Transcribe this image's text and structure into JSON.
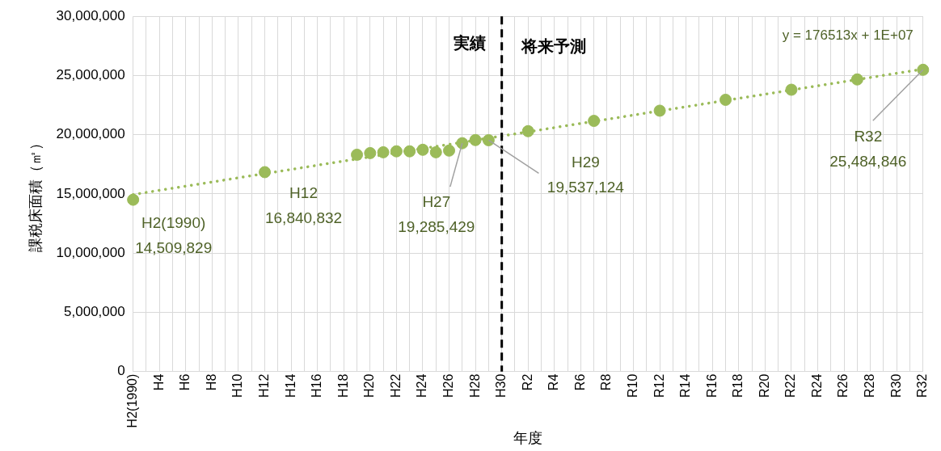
{
  "chart_data": {
    "type": "scatter",
    "ylabel": "課税床面積（㎡）",
    "xlabel": "年度",
    "categories": [
      "H2(1990)",
      null,
      "H4",
      null,
      "H6",
      null,
      "H8",
      null,
      "H10",
      null,
      "H12",
      null,
      "H14",
      null,
      "H16",
      null,
      "H18",
      null,
      "H20",
      null,
      "H22",
      null,
      "H24",
      null,
      "H26",
      null,
      "H28",
      null,
      "H30",
      null,
      "R2",
      null,
      "R4",
      null,
      "R6",
      null,
      "R8",
      null,
      "R10",
      null,
      "R12",
      null,
      "R14",
      null,
      "R16",
      null,
      "R18",
      null,
      "R20",
      null,
      "R22",
      null,
      "R24",
      null,
      "R26",
      null,
      "R28",
      null,
      "R30",
      null,
      "R32"
    ],
    "series": [
      {
        "type": "scatter",
        "color": "#9bbb59",
        "marker": "circle",
        "values": [
          14509829,
          null,
          null,
          null,
          null,
          null,
          null,
          null,
          null,
          null,
          16840832,
          null,
          null,
          null,
          null,
          null,
          null,
          18310000,
          18450000,
          18520000,
          18600000,
          18600000,
          18730000,
          18520000,
          18660000,
          19285429,
          19550000,
          19537124,
          null,
          null,
          20300000,
          null,
          null,
          null,
          null,
          21170000,
          null,
          null,
          null,
          null,
          22030000,
          null,
          null,
          null,
          null,
          22950000,
          null,
          null,
          null,
          null,
          23800000,
          null,
          null,
          null,
          null,
          24670000,
          null,
          null,
          null,
          null,
          25484846
        ],
        "value_labels": [
          "H2(1990)\n14,509,829",
          null,
          null,
          null,
          null,
          null,
          null,
          null,
          null,
          null,
          "H12\n16,840,832",
          null,
          null,
          null,
          null,
          null,
          null,
          null,
          null,
          null,
          null,
          null,
          null,
          null,
          null,
          "H27\n19,285,429",
          null,
          "H29\n19,537,124",
          null,
          null,
          null,
          null,
          null,
          null,
          null,
          null,
          null,
          null,
          null,
          null,
          null,
          null,
          null,
          null,
          null,
          null,
          null,
          null,
          null,
          null,
          null,
          null,
          null,
          null,
          null,
          null,
          null,
          null,
          null,
          null,
          "R32\n25,484,846"
        ]
      },
      {
        "type": "line",
        "color": "#9bbb59",
        "line_style": "dotted",
        "marker": "none",
        "values": [
          14950000,
          null,
          null,
          null,
          null,
          null,
          null,
          null,
          null,
          null,
          null,
          null,
          null,
          null,
          null,
          null,
          null,
          null,
          null,
          null,
          null,
          null,
          null,
          null,
          null,
          null,
          null,
          null,
          null,
          null,
          null,
          null,
          null,
          null,
          null,
          null,
          null,
          null,
          null,
          null,
          null,
          null,
          null,
          null,
          null,
          null,
          null,
          null,
          null,
          null,
          null,
          null,
          null,
          null,
          null,
          null,
          null,
          null,
          null,
          null,
          25540000
        ]
      }
    ],
    "ylim": [
      0,
      30000000
    ],
    "yticks": [
      0,
      {
        "value": 5000000,
        "label": "5,000,000"
      },
      {
        "value": 10000000,
        "label": "10,000,000"
      },
      {
        "value": 15000000,
        "label": "15,000,000"
      },
      {
        "value": 20000000,
        "label": "20,000,000"
      },
      {
        "value": 25000000,
        "label": "25,000,000"
      },
      {
        "value": 30000000,
        "label": "30,000,000"
      }
    ],
    "grid": true,
    "legend": false,
    "ref_lines": [
      {
        "axis": "x",
        "value": "H30",
        "color": "#000000",
        "line_style": "dashed"
      }
    ],
    "annotations": [
      "実績",
      "将来予測",
      "y = 176513x + 1E+07"
    ]
  }
}
